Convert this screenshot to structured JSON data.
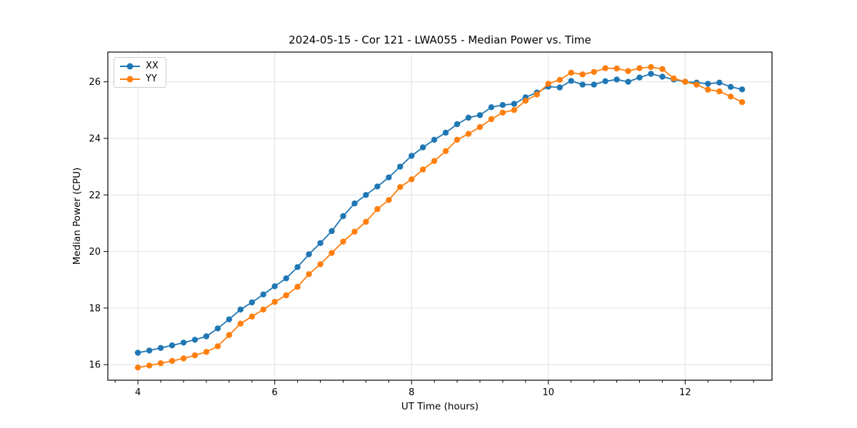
{
  "figure": {
    "title": "2024-05-15 - Cor 121 - LWA055 - Median Power vs. Time",
    "xlabel": "UT Time (hours)",
    "ylabel": "Median Power (CPU)"
  },
  "legend": {
    "position": "upper left",
    "entries": [
      {
        "label": "XX",
        "color": "#1f77b4"
      },
      {
        "label": "YY",
        "color": "#ff7f0e"
      }
    ]
  },
  "colors": {
    "series_xx": "#1f77b4",
    "series_yy": "#ff7f0e",
    "grid": "#e0e0e0",
    "spine": "#000000",
    "background": "#ffffff"
  },
  "chart_data": {
    "type": "line",
    "title": "2024-05-15 - Cor 121 - LWA055 - Median Power vs. Time",
    "xlabel": "UT Time (hours)",
    "ylabel": "Median Power (CPU)",
    "xlim": [
      3.56,
      13.27
    ],
    "ylim": [
      15.45,
      27.05
    ],
    "x_major_ticks": [
      4,
      6,
      8,
      10,
      12
    ],
    "x_minor_tick_interval": 0.3333,
    "y_ticks": [
      16,
      18,
      20,
      22,
      24,
      26
    ],
    "grid": true,
    "legend_position": "upper left",
    "marker": "circle",
    "x": [
      4.0,
      4.167,
      4.333,
      4.5,
      4.667,
      4.833,
      5.0,
      5.167,
      5.333,
      5.5,
      5.667,
      5.833,
      6.0,
      6.167,
      6.333,
      6.5,
      6.667,
      6.833,
      7.0,
      7.167,
      7.333,
      7.5,
      7.667,
      7.833,
      8.0,
      8.167,
      8.333,
      8.5,
      8.667,
      8.833,
      9.0,
      9.167,
      9.333,
      9.5,
      9.667,
      9.833,
      10.0,
      10.167,
      10.333,
      10.5,
      10.667,
      10.833,
      11.0,
      11.167,
      11.333,
      11.5,
      11.667,
      11.833,
      12.0,
      12.167,
      12.333,
      12.5,
      12.667,
      12.833
    ],
    "series": [
      {
        "name": "XX",
        "color": "#1f77b4",
        "values": [
          16.42,
          16.5,
          16.59,
          16.68,
          16.78,
          16.88,
          17.0,
          17.28,
          17.6,
          17.95,
          18.2,
          18.48,
          18.77,
          19.05,
          19.45,
          19.9,
          20.3,
          20.72,
          21.25,
          21.7,
          22.0,
          22.3,
          22.62,
          23.0,
          23.38,
          23.68,
          23.95,
          24.2,
          24.5,
          24.73,
          24.82,
          25.1,
          25.18,
          25.22,
          25.45,
          25.62,
          25.83,
          25.8,
          26.03,
          25.9,
          25.9,
          26.02,
          26.08,
          26.0,
          26.15,
          26.28,
          26.18,
          26.08,
          26.0,
          25.97,
          25.93,
          25.97,
          25.82,
          25.73
        ]
      },
      {
        "name": "YY",
        "color": "#ff7f0e",
        "values": [
          15.9,
          15.97,
          16.05,
          16.13,
          16.22,
          16.33,
          16.45,
          16.65,
          17.05,
          17.45,
          17.7,
          17.95,
          18.22,
          18.45,
          18.75,
          19.2,
          19.55,
          19.95,
          20.35,
          20.7,
          21.05,
          21.5,
          21.82,
          22.28,
          22.55,
          22.9,
          23.2,
          23.55,
          23.95,
          24.16,
          24.4,
          24.68,
          24.91,
          25.0,
          25.33,
          25.55,
          25.93,
          26.07,
          26.32,
          26.26,
          26.35,
          26.48,
          26.47,
          26.38,
          26.48,
          26.52,
          26.45,
          26.12,
          26.0,
          25.9,
          25.72,
          25.66,
          25.48,
          25.28
        ]
      }
    ]
  }
}
